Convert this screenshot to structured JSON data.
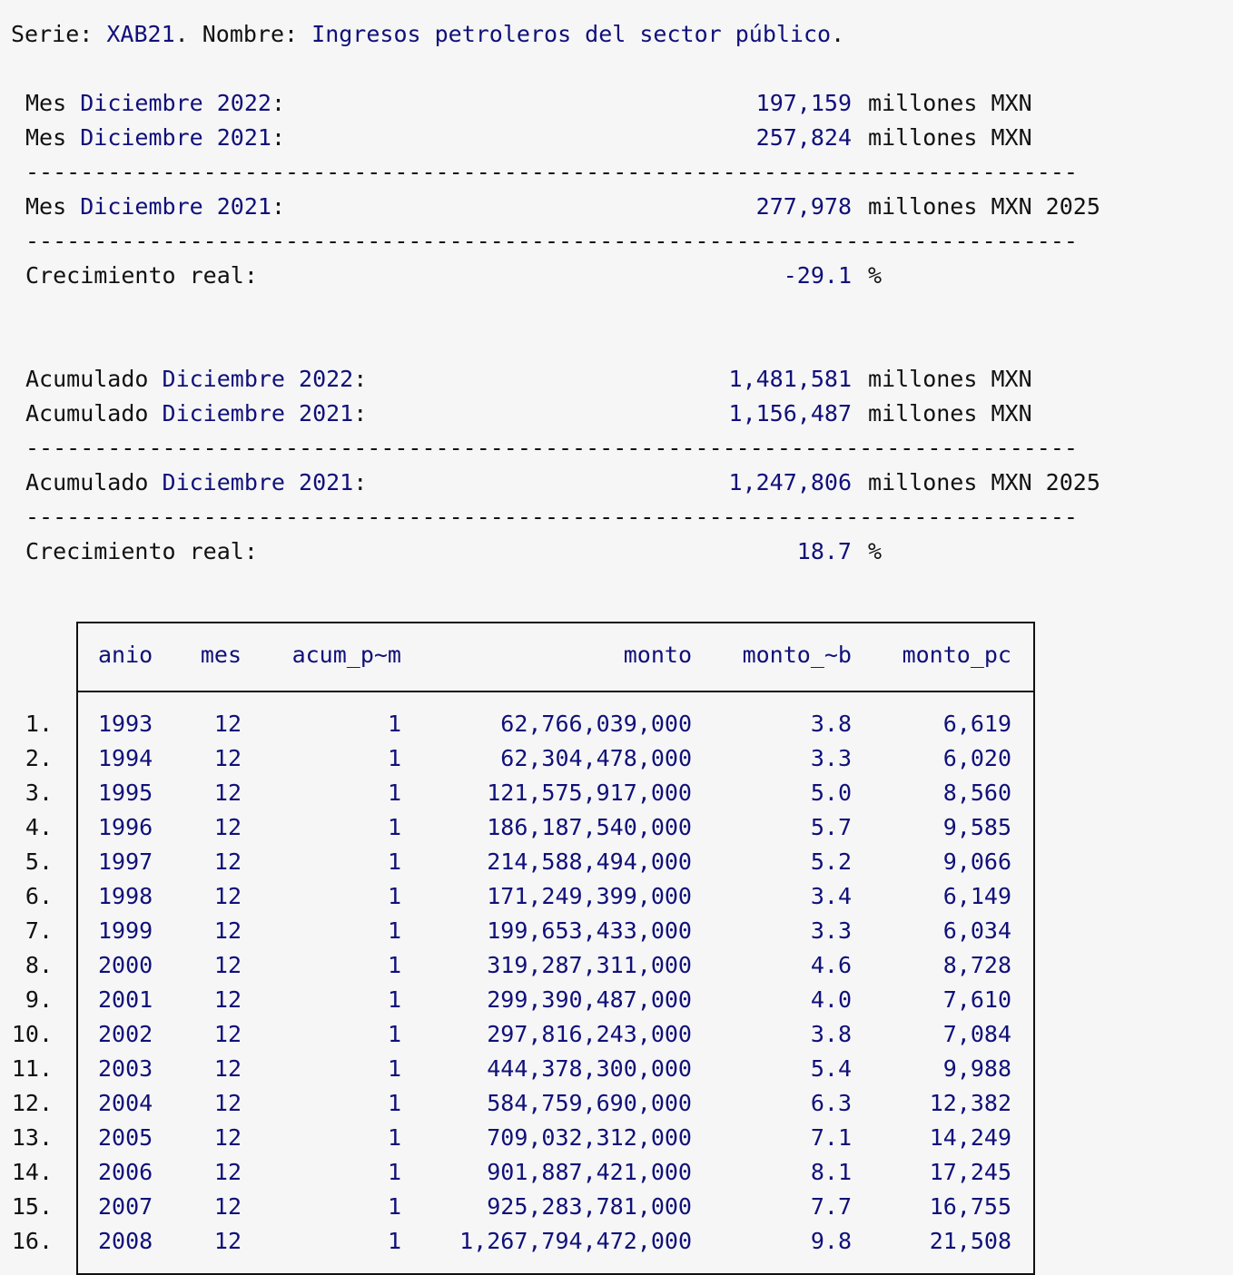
{
  "serie": {
    "label_serie": "Serie: ",
    "code": "XAB21",
    "label_nombre": ". Nombre: ",
    "name": "Ingresos petroleros del sector público",
    "end": "."
  },
  "mes": {
    "row1": {
      "prefix": "Mes ",
      "period": "Diciembre 2022",
      "colon": ":",
      "value": "197,159",
      "unit": "millones MXN"
    },
    "row2": {
      "prefix": "Mes ",
      "period": "Diciembre 2021",
      "colon": ":",
      "value": "257,824",
      "unit": "millones MXN"
    },
    "row3": {
      "prefix": "Mes ",
      "period": "Diciembre 2021",
      "colon": ":",
      "value": "277,978",
      "unit": "millones MXN 2025"
    },
    "growth": {
      "label": "Crecimiento real:",
      "value": "-29.1",
      "unit": "%"
    }
  },
  "acumulado": {
    "row1": {
      "prefix": "Acumulado ",
      "period": "Diciembre 2022",
      "colon": ":",
      "value": "1,481,581",
      "unit": "millones MXN"
    },
    "row2": {
      "prefix": "Acumulado ",
      "period": "Diciembre 2021",
      "colon": ":",
      "value": "1,156,487",
      "unit": "millones MXN"
    },
    "row3": {
      "prefix": "Acumulado ",
      "period": "Diciembre 2021",
      "colon": ":",
      "value": "1,247,806",
      "unit": "millones MXN 2025"
    },
    "growth": {
      "label": "Crecimiento real:",
      "value": "18.7",
      "unit": "%"
    }
  },
  "separator": "-----------------------------------------------------------------------------",
  "table": {
    "headers": [
      "anio",
      "mes",
      "acum_p~m",
      "monto",
      "monto_~b",
      "monto_pc"
    ],
    "rows": [
      [
        "1.",
        "1993",
        "12",
        "1",
        "62,766,039,000",
        "3.8",
        "6,619"
      ],
      [
        "2.",
        "1994",
        "12",
        "1",
        "62,304,478,000",
        "3.3",
        "6,020"
      ],
      [
        "3.",
        "1995",
        "12",
        "1",
        "121,575,917,000",
        "5.0",
        "8,560"
      ],
      [
        "4.",
        "1996",
        "12",
        "1",
        "186,187,540,000",
        "5.7",
        "9,585"
      ],
      [
        "5.",
        "1997",
        "12",
        "1",
        "214,588,494,000",
        "5.2",
        "9,066"
      ],
      [
        "6.",
        "1998",
        "12",
        "1",
        "171,249,399,000",
        "3.4",
        "6,149"
      ],
      [
        "7.",
        "1999",
        "12",
        "1",
        "199,653,433,000",
        "3.3",
        "6,034"
      ],
      [
        "8.",
        "2000",
        "12",
        "1",
        "319,287,311,000",
        "4.6",
        "8,728"
      ],
      [
        "9.",
        "2001",
        "12",
        "1",
        "299,390,487,000",
        "4.0",
        "7,610"
      ],
      [
        "10.",
        "2002",
        "12",
        "1",
        "297,816,243,000",
        "3.8",
        "7,084"
      ],
      [
        "11.",
        "2003",
        "12",
        "1",
        "444,378,300,000",
        "5.4",
        "9,988"
      ],
      [
        "12.",
        "2004",
        "12",
        "1",
        "584,759,690,000",
        "6.3",
        "12,382"
      ],
      [
        "13.",
        "2005",
        "12",
        "1",
        "709,032,312,000",
        "7.1",
        "14,249"
      ],
      [
        "14.",
        "2006",
        "12",
        "1",
        "901,887,421,000",
        "8.1",
        "17,245"
      ],
      [
        "15.",
        "2007",
        "12",
        "1",
        "925,283,781,000",
        "7.7",
        "16,755"
      ],
      [
        "16.",
        "2008",
        "12",
        "1",
        "1,267,794,472,000",
        "9.8",
        "21,508"
      ]
    ]
  }
}
